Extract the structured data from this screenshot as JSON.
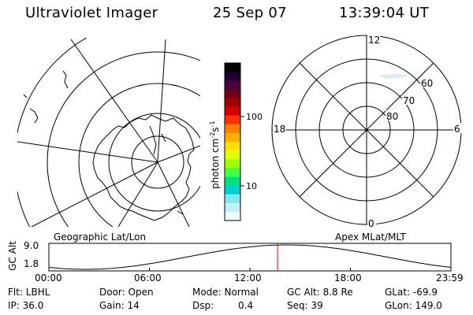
{
  "header": {
    "title": "Ultraviolet Imager",
    "date": "25 Sep 07",
    "time": "13:39:04 UT"
  },
  "colorbar": {
    "unit_label": "photon cm",
    "unit_sup1": "-2",
    "unit_s": "s",
    "unit_sup2": "-1",
    "ticks": [
      "100",
      "10"
    ],
    "colors": [
      "#000000",
      "#1a0033",
      "#4a0040",
      "#70001a",
      "#a00000",
      "#d40000",
      "#ff3300",
      "#ff8000",
      "#ffb000",
      "#ffe000",
      "#e0ff00",
      "#a0ff00",
      "#40ff40",
      "#00e080",
      "#00d0d0",
      "#80e8f0",
      "#c0f0f8",
      "#f0fbff"
    ]
  },
  "left_map": {
    "caption": "Geographic Lat/Lon"
  },
  "right_map": {
    "caption": "Apex MLat/MLT",
    "mlt_labels": {
      "top": "12",
      "bottom": "0",
      "left": "18",
      "right": "6"
    },
    "lat_labels": [
      "60",
      "70",
      "80"
    ]
  },
  "altitude_strip": {
    "ylabel": "GC Alt",
    "ymax": "9.0",
    "ymin": "1.8",
    "time_ticks": [
      "00:00",
      "06:00",
      "12:00",
      "18:00",
      "23:59"
    ],
    "current_time_hours": 13.65,
    "marker_color": "#ff0000"
  },
  "info": {
    "row1": {
      "filter": "Flt: LBHL",
      "door": "Door: Open",
      "mode": "Mode: Normal",
      "gc_alt": "GC Alt: 8.8 Re",
      "glat": "GLat: -69.9"
    },
    "row2": {
      "ip": "IP: 36.0",
      "gain": "Gain: 14",
      "dsp_label": "Dsp:",
      "dsp_value": "0.4",
      "seq": "Seq: 39",
      "glon": "GLon: 149.0"
    }
  }
}
